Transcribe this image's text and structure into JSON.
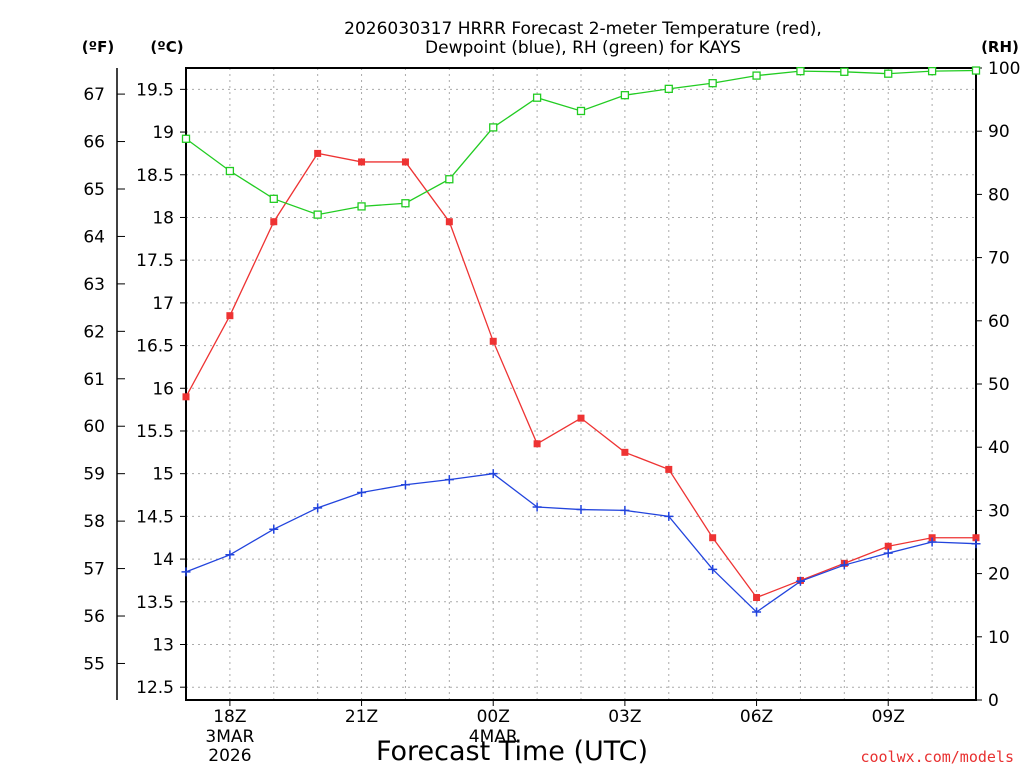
{
  "chart_data": {
    "type": "line",
    "title": "2026030317 HRRR Forecast 2-meter Temperature (red),",
    "subtitle": "Dewpoint (blue), RH (green) for KAYS",
    "xlabel": "Forecast Time (UTC)",
    "credit": "coolwx.com/models",
    "unit_f": "(ºF)",
    "unit_c": "(ºC)",
    "unit_rh": "(RH)",
    "x": [
      17,
      18,
      19,
      20,
      21,
      22,
      23,
      24,
      25,
      26,
      27,
      28,
      29,
      30,
      31,
      32,
      33,
      34,
      35
    ],
    "x_ticks": [
      {
        "x": 18,
        "label": "18Z",
        "date1": "3MAR",
        "date2": "2026"
      },
      {
        "x": 21,
        "label": "21Z",
        "date1": "",
        "date2": ""
      },
      {
        "x": 24,
        "label": "00Z",
        "date1": "4MAR",
        "date2": ""
      },
      {
        "x": 27,
        "label": "03Z",
        "date1": "",
        "date2": ""
      },
      {
        "x": 30,
        "label": "06Z",
        "date1": "",
        "date2": ""
      },
      {
        "x": 33,
        "label": "09Z",
        "date1": "",
        "date2": ""
      }
    ],
    "xlim": [
      17,
      35
    ],
    "ylim_c": [
      12.35,
      19.75
    ],
    "c_ticks": [
      12.5,
      13,
      13.5,
      14,
      14.5,
      15,
      15.5,
      16,
      16.5,
      17,
      17.5,
      18,
      18.5,
      19,
      19.5
    ],
    "c_tick_labels": [
      "12.5",
      "13",
      "13.5",
      "14",
      "14.5",
      "15",
      "15.5",
      "16",
      "16.5",
      "17",
      "17.5",
      "18",
      "18.5",
      "19",
      "19.5"
    ],
    "f_ticks": [
      55,
      56,
      57,
      58,
      59,
      60,
      61,
      62,
      63,
      64,
      65,
      66,
      67
    ],
    "f_tick_labels": [
      "55",
      "56",
      "57",
      "58",
      "59",
      "60",
      "61",
      "62",
      "63",
      "64",
      "65",
      "66",
      "67"
    ],
    "ylim_rh": [
      0,
      100
    ],
    "rh_ticks": [
      0,
      10,
      20,
      30,
      40,
      50,
      60,
      70,
      80,
      90,
      100
    ],
    "rh_tick_labels": [
      "0",
      "10",
      "20",
      "30",
      "40",
      "50",
      "60",
      "70",
      "80",
      "90",
      "100"
    ],
    "series": [
      {
        "name": "Temperature",
        "axis": "c",
        "color": "#ee3333",
        "marker": "filled-square",
        "values": [
          15.9,
          16.85,
          17.95,
          18.75,
          18.65,
          18.65,
          17.95,
          16.55,
          15.35,
          15.65,
          15.25,
          15.05,
          14.25,
          13.55,
          13.75,
          13.95,
          14.15,
          14.25,
          14.25
        ]
      },
      {
        "name": "Dewpoint",
        "axis": "c",
        "color": "#2244dd",
        "marker": "plus",
        "values": [
          13.85,
          14.05,
          14.35,
          14.6,
          14.78,
          14.87,
          14.93,
          15.0,
          14.61,
          14.58,
          14.57,
          14.5,
          13.88,
          13.38,
          13.74,
          13.93,
          14.07,
          14.2,
          14.18
        ]
      },
      {
        "name": "RH",
        "axis": "rh",
        "color": "#22cc22",
        "marker": "open-square",
        "values": [
          88.8,
          83.7,
          79.3,
          76.8,
          78.1,
          78.6,
          82.4,
          90.6,
          95.3,
          93.2,
          95.7,
          96.7,
          97.6,
          98.8,
          99.5,
          99.4,
          99.1,
          99.5,
          99.6
        ]
      }
    ],
    "grid": true
  }
}
